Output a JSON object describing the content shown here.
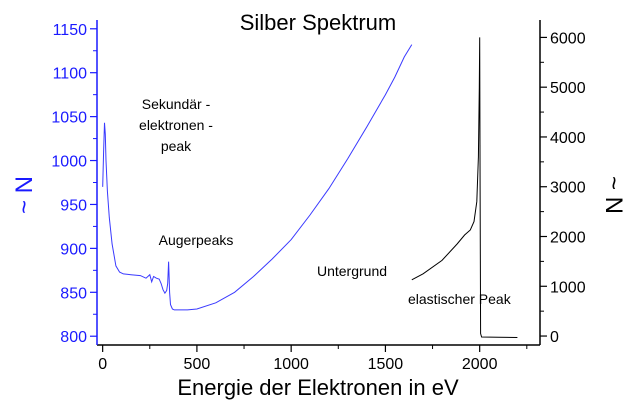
{
  "chart_data": {
    "type": "line",
    "title": "Silber Spektrum",
    "xlabel": "Energie der Elektronen in eV",
    "ylabel_left": "~ N",
    "ylabel_right": "~ N",
    "xlim": [
      -30,
      2320
    ],
    "ylim_left": [
      790,
      1160
    ],
    "ylim_right": [
      -180,
      6350
    ],
    "x_ticks": [
      0,
      500,
      1000,
      1500,
      2000
    ],
    "y_left_ticks": [
      800,
      850,
      900,
      950,
      1000,
      1050,
      1100,
      1150
    ],
    "y_right_ticks": [
      0,
      1000,
      2000,
      3000,
      4000,
      5000,
      6000
    ],
    "colors": {
      "left_series": "#3a3aff",
      "right_series": "#000000",
      "left_axis": "#1a1aff",
      "right_axis": "#000000"
    },
    "series": [
      {
        "axis": "left",
        "x": [
          0,
          5,
          10,
          14,
          18,
          25,
          35,
          50,
          70,
          90,
          110,
          150,
          200,
          230,
          250,
          260,
          270,
          285,
          300,
          310,
          320,
          330,
          340,
          345,
          350,
          352,
          355,
          360,
          370,
          380,
          450,
          500,
          600,
          700,
          800,
          900,
          1000,
          1100,
          1200,
          1300,
          1400,
          1500,
          1550,
          1600,
          1640
        ],
        "y": [
          970,
          1010,
          1043,
          1030,
          1000,
          965,
          935,
          905,
          880,
          873,
          871,
          870,
          869,
          866,
          870,
          862,
          868,
          866,
          865,
          860,
          853,
          849,
          852,
          860,
          885,
          872,
          850,
          836,
          831,
          830,
          830,
          831,
          838,
          850,
          868,
          888,
          910,
          938,
          968,
          1002,
          1038,
          1075,
          1095,
          1118,
          1132
        ]
      },
      {
        "axis": "right",
        "x": [
          1640,
          1700,
          1800,
          1880,
          1920,
          1950,
          1970,
          1985,
          1993,
          1998,
          2000,
          2002,
          2005,
          2010,
          2100,
          2200
        ],
        "y": [
          1130,
          1250,
          1520,
          1850,
          2030,
          2130,
          2300,
          2700,
          3600,
          5000,
          6000,
          3000,
          50,
          -20,
          -25,
          -30
        ]
      }
    ],
    "annotations": [
      {
        "lines": [
          "Sekundär -",
          "elektronen -",
          "peak"
        ]
      },
      {
        "lines": [
          "Augerpeaks"
        ]
      },
      {
        "lines": [
          "Untergrund"
        ]
      },
      {
        "lines": [
          "elastischer  Peak"
        ]
      }
    ]
  }
}
